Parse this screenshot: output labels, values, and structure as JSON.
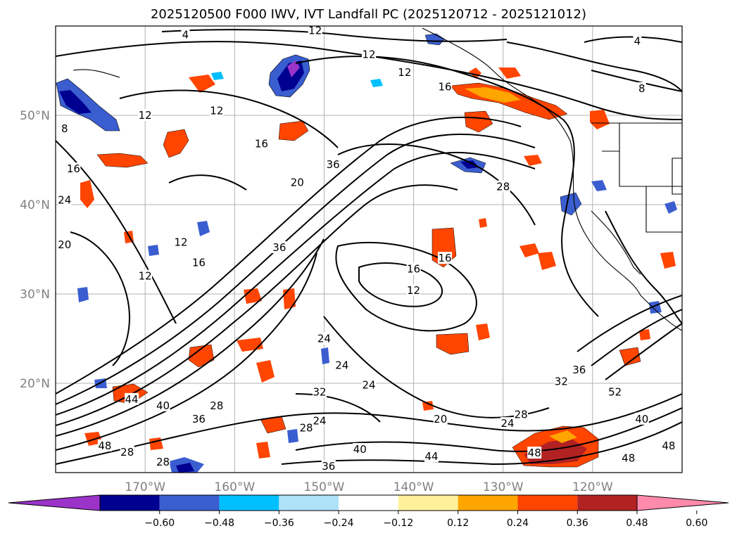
{
  "title": "2025120500 F000 IWV, IVT Landfall PC (2025120712 - 2025121012)",
  "map": {
    "projection": "cylindrical",
    "lon_range": [
      -180,
      -110
    ],
    "lat_range": [
      10,
      60
    ],
    "gridlines": true,
    "lat_ticks": [
      "50°N",
      "40°N",
      "30°N",
      "20°N"
    ],
    "lat_values": [
      50,
      40,
      30,
      20
    ],
    "lon_ticks": [
      "170°W",
      "160°W",
      "150°W",
      "140°W",
      "130°W",
      "120°W"
    ],
    "lon_values": [
      -170,
      -160,
      -150,
      -140,
      -130,
      -120
    ],
    "grid_color": "#b0b0b0",
    "tick_color": "#808080",
    "contour_color": "#000000",
    "contour_labels": [
      {
        "text": "4",
        "lon": -165.5,
        "lat": 59
      },
      {
        "text": "12",
        "lon": -151,
        "lat": 59.5
      },
      {
        "text": "4",
        "lon": -115,
        "lat": 58.3
      },
      {
        "text": "12",
        "lon": -145,
        "lat": 56.8
      },
      {
        "text": "12",
        "lon": -141,
        "lat": 54.8
      },
      {
        "text": "16",
        "lon": -136.5,
        "lat": 53.2
      },
      {
        "text": "8",
        "lon": -114.5,
        "lat": 53
      },
      {
        "text": "12",
        "lon": -170,
        "lat": 50
      },
      {
        "text": "12",
        "lon": -162,
        "lat": 50.5
      },
      {
        "text": "8",
        "lon": -179,
        "lat": 48.5
      },
      {
        "text": "16",
        "lon": -157,
        "lat": 46.8
      },
      {
        "text": "16",
        "lon": -178,
        "lat": 44
      },
      {
        "text": "36",
        "lon": -149,
        "lat": 44.5
      },
      {
        "text": "20",
        "lon": -153,
        "lat": 42.5
      },
      {
        "text": "28",
        "lon": -130,
        "lat": 42
      },
      {
        "text": "24",
        "lon": -179,
        "lat": 40.5
      },
      {
        "text": "20",
        "lon": -179,
        "lat": 35.5
      },
      {
        "text": "12",
        "lon": -166,
        "lat": 35.8
      },
      {
        "text": "36",
        "lon": -155,
        "lat": 35.2
      },
      {
        "text": "16",
        "lon": -164,
        "lat": 33.5
      },
      {
        "text": "16",
        "lon": -140,
        "lat": 32.8
      },
      {
        "text": "16",
        "lon": -136.5,
        "lat": 34
      },
      {
        "text": "12",
        "lon": -170,
        "lat": 32
      },
      {
        "text": "12",
        "lon": -140,
        "lat": 30.4
      },
      {
        "text": "24",
        "lon": -150,
        "lat": 25
      },
      {
        "text": "24",
        "lon": -148,
        "lat": 22
      },
      {
        "text": "24",
        "lon": -145,
        "lat": 19.8
      },
      {
        "text": "32",
        "lon": -150.5,
        "lat": 19
      },
      {
        "text": "36",
        "lon": -121.5,
        "lat": 21.5
      },
      {
        "text": "32",
        "lon": -123.5,
        "lat": 20.2
      },
      {
        "text": "52",
        "lon": -117.5,
        "lat": 19
      },
      {
        "text": "28",
        "lon": -162,
        "lat": 17.5
      },
      {
        "text": "20",
        "lon": -137,
        "lat": 16
      },
      {
        "text": "24",
        "lon": -129.5,
        "lat": 15.5
      },
      {
        "text": "28",
        "lon": -128,
        "lat": 16.5
      },
      {
        "text": "40",
        "lon": -114.5,
        "lat": 16
      },
      {
        "text": "36",
        "lon": -164,
        "lat": 16
      },
      {
        "text": "28",
        "lon": -152,
        "lat": 15
      },
      {
        "text": "24",
        "lon": -150.5,
        "lat": 15.8
      },
      {
        "text": "48",
        "lon": -174.5,
        "lat": 13
      },
      {
        "text": "28",
        "lon": -172,
        "lat": 12.3
      },
      {
        "text": "40",
        "lon": -146,
        "lat": 12.6
      },
      {
        "text": "44",
        "lon": -138,
        "lat": 11.8
      },
      {
        "text": "48",
        "lon": -126.5,
        "lat": 12.2
      },
      {
        "text": "48",
        "lon": -116,
        "lat": 11.6
      },
      {
        "text": "48",
        "lon": -111.5,
        "lat": 13
      },
      {
        "text": "36",
        "lon": -149.5,
        "lat": 10.7
      },
      {
        "text": "28",
        "lon": -168,
        "lat": 11.2
      },
      {
        "text": "44",
        "lon": -171.5,
        "lat": 18.2
      },
      {
        "text": "40",
        "lon": -168,
        "lat": 17.5
      }
    ]
  },
  "colorbar": {
    "tick_labels": [
      "−0.60",
      "−0.48",
      "−0.36",
      "−0.24",
      "−0.12",
      "0.12",
      "0.24",
      "0.36",
      "0.48",
      "0.60"
    ],
    "colors": [
      "#9b33c9",
      "#000090",
      "#3a5ed0",
      "#00bfff",
      "#ade2f8",
      "#ffffff",
      "#fff09a",
      "#ffa500",
      "#ff4500",
      "#b22222",
      "#ff8aab"
    ]
  }
}
